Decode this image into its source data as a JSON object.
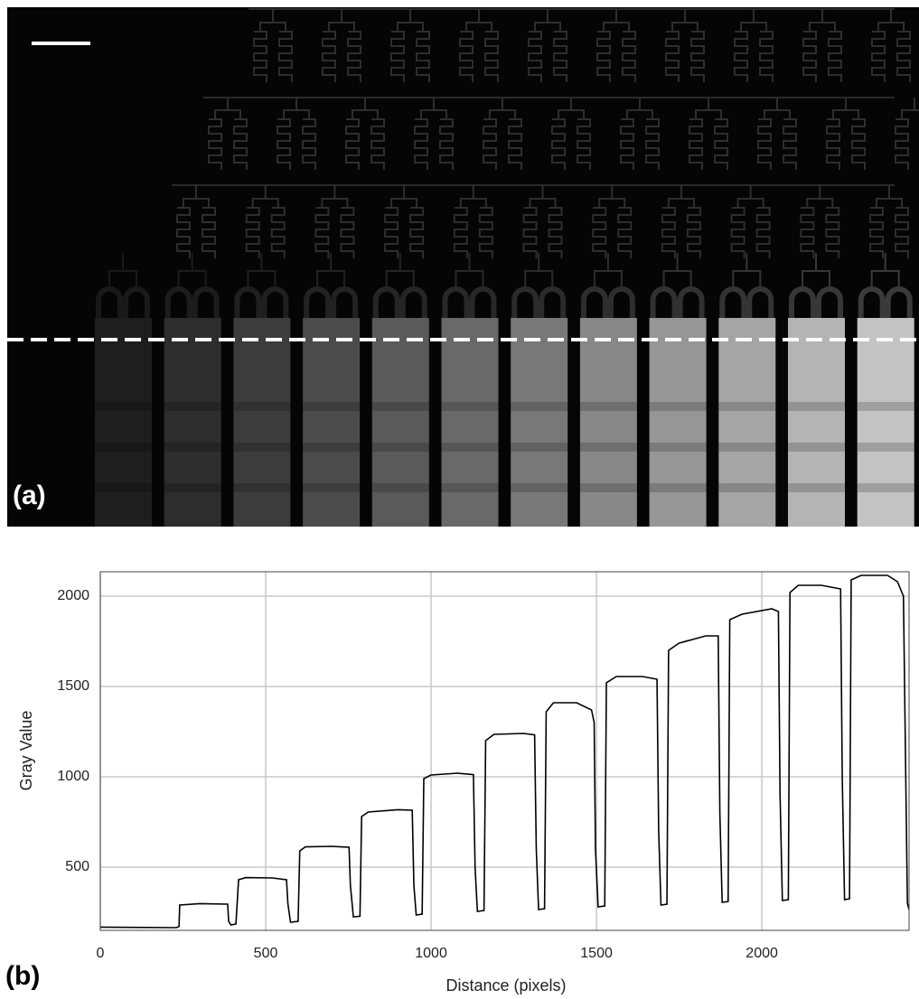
{
  "panel_labels": [
    "(a)",
    "(b)"
  ],
  "chart_data": {
    "type": "line",
    "xlabel": "Distance (pixels)",
    "ylabel": "Gray Value",
    "xlim": [
      0,
      2445
    ],
    "ylim": [
      150,
      2135
    ],
    "xticks": [
      0,
      500,
      1000,
      1500,
      2000
    ],
    "yticks": [
      500,
      1000,
      1500,
      2000
    ],
    "grid": true,
    "color": "#000000",
    "x": [
      0,
      230,
      238,
      240,
      300,
      385,
      388,
      395,
      410,
      418,
      440,
      520,
      563,
      567,
      575,
      598,
      603,
      620,
      700,
      752,
      756,
      765,
      785,
      790,
      810,
      900,
      943,
      948,
      955,
      973,
      978,
      1000,
      1080,
      1128,
      1133,
      1140,
      1160,
      1165,
      1190,
      1280,
      1313,
      1318,
      1325,
      1343,
      1348,
      1370,
      1440,
      1485,
      1493,
      1497,
      1505,
      1525,
      1530,
      1560,
      1640,
      1683,
      1688,
      1695,
      1713,
      1718,
      1750,
      1830,
      1868,
      1873,
      1880,
      1898,
      1903,
      1940,
      2030,
      2050,
      2055,
      2062,
      2080,
      2085,
      2110,
      2180,
      2238,
      2243,
      2250,
      2265,
      2270,
      2300,
      2380,
      2410,
      2428,
      2435,
      2440,
      2445
    ],
    "values": [
      168,
      165,
      172,
      290,
      298,
      295,
      200,
      180,
      185,
      430,
      442,
      440,
      430,
      300,
      195,
      200,
      590,
      612,
      615,
      610,
      400,
      225,
      228,
      780,
      805,
      818,
      815,
      400,
      235,
      240,
      990,
      1010,
      1020,
      1012,
      500,
      255,
      260,
      1200,
      1235,
      1240,
      1232,
      600,
      265,
      270,
      1360,
      1410,
      1410,
      1370,
      1300,
      600,
      280,
      285,
      1520,
      1555,
      1555,
      1540,
      700,
      290,
      295,
      1700,
      1740,
      1780,
      1780,
      800,
      305,
      310,
      1870,
      1900,
      1930,
      1915,
      900,
      315,
      320,
      2020,
      2060,
      2060,
      2040,
      1000,
      320,
      325,
      2090,
      2115,
      2115,
      2080,
      2000,
      1000,
      300,
      265
    ]
  }
}
